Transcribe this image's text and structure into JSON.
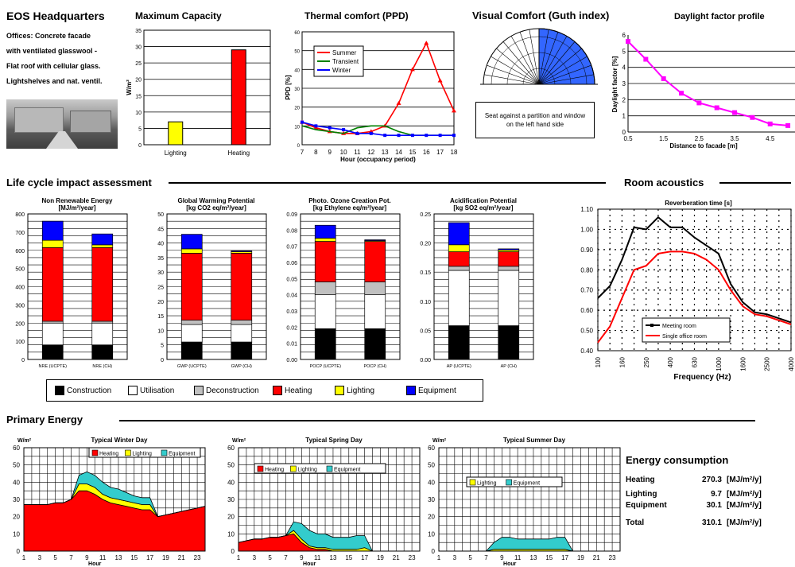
{
  "header": {
    "title": "EOS Headquarters",
    "description": [
      "Offices: Concrete facade",
      "with ventilated glasswool -",
      "Flat roof with cellular glass.",
      "Lightshelves and nat. ventil."
    ]
  },
  "sections": {
    "lca": "Life cycle impact assessment",
    "acoustics": "Room acoustics",
    "primary": "Primary Energy",
    "energy": "Energy consumption"
  },
  "guth": {
    "title": "Visual Comfort (Guth index)",
    "note": "Seat against a partition and window on the left hand side"
  },
  "lca_legend": [
    {
      "label": "Construction",
      "color": "#000000"
    },
    {
      "label": "Utilisation",
      "color": "#ffffff"
    },
    {
      "label": "Deconstruction",
      "color": "#c0c0c0"
    },
    {
      "label": "Heating",
      "color": "#ff0000"
    },
    {
      "label": "Lighting",
      "color": "#ffff00"
    },
    {
      "label": "Equipment",
      "color": "#0000ff"
    }
  ],
  "energy_consumption": {
    "unit": "[MJ/m²/y]",
    "rows": [
      {
        "label": "Heating",
        "value": "270.3"
      },
      {
        "label": "Lighting",
        "value": "9.7"
      },
      {
        "label": "Equipment",
        "value": "30.1"
      },
      {
        "label": "Total",
        "value": "310.1"
      }
    ]
  },
  "chart_data": [
    {
      "type": "bar",
      "title": "Maximum Capacity",
      "ylabel": "W/m²",
      "categories": [
        "Lighting",
        "Heating"
      ],
      "values": [
        7,
        29
      ],
      "colors": [
        "#ffff00",
        "#ff0000"
      ],
      "ylim": [
        0,
        35
      ],
      "yticks": [
        "0",
        "5",
        "10",
        "15",
        "20",
        "25",
        "30",
        "35"
      ]
    },
    {
      "type": "line",
      "title": "Thermal comfort (PPD)",
      "ylabel": "PPD [%]",
      "xlabel": "Hour (occupancy period)",
      "x": [
        7,
        8,
        9,
        10,
        11,
        12,
        13,
        14,
        15,
        16,
        17,
        18
      ],
      "ylim": [
        0,
        60
      ],
      "yticks": [
        "0",
        "10",
        "20",
        "30",
        "40",
        "50",
        "60"
      ],
      "series": [
        {
          "name": "Summer",
          "color": "#ff0000",
          "values": [
            12,
            9,
            7,
            6,
            6,
            7,
            10,
            22,
            40,
            54,
            34,
            18
          ]
        },
        {
          "name": "Transient",
          "color": "#008000",
          "values": [
            10,
            8,
            7,
            6,
            9,
            10,
            10,
            7,
            5,
            5,
            5,
            5
          ]
        },
        {
          "name": "Winter",
          "color": "#0000ff",
          "values": [
            12,
            10,
            9,
            8,
            6,
            6,
            5,
            5,
            5,
            5,
            5,
            5
          ]
        }
      ]
    },
    {
      "type": "line",
      "title": "Daylight factor profile",
      "ylabel": "Daylight factor [%]",
      "xlabel": "Distance to facade [m]",
      "x": [
        0.5,
        1,
        1.5,
        2,
        2.5,
        3,
        3.5,
        4,
        4.5,
        5
      ],
      "ylim": [
        0,
        6
      ],
      "xticks": [
        "0.5",
        "1.5",
        "2.5",
        "3.5",
        "4.5"
      ],
      "yticks": [
        "0",
        "1",
        "2",
        "3",
        "4",
        "5",
        "6"
      ],
      "series": [
        {
          "name": "",
          "color": "#ff00ff",
          "values": [
            5.6,
            4.5,
            3.3,
            2.4,
            1.8,
            1.5,
            1.2,
            0.9,
            0.5,
            0.4
          ]
        }
      ]
    },
    {
      "type": "bar",
      "title": "Non Renewable Energy",
      "subtitle": "[MJ/m²/year]",
      "stacked": true,
      "categories": [
        "NRE (UCPTE)",
        "NRE (CH)"
      ],
      "ylim": [
        0,
        800
      ],
      "yticks": [
        "0",
        "100",
        "200",
        "300",
        "400",
        "500",
        "600",
        "700",
        "800"
      ],
      "series": [
        {
          "name": "Construction",
          "values": [
            80,
            80
          ]
        },
        {
          "name": "Utilisation",
          "values": [
            120,
            120
          ]
        },
        {
          "name": "Deconstruction",
          "values": [
            10,
            10
          ]
        },
        {
          "name": "Heating",
          "values": [
            405,
            405
          ]
        },
        {
          "name": "Lighting",
          "values": [
            40,
            15
          ]
        },
        {
          "name": "Equipment",
          "values": [
            105,
            60
          ]
        }
      ]
    },
    {
      "type": "bar",
      "title": "Global Warming Potential",
      "subtitle": "[kg CO2 eq/m²/year]",
      "stacked": true,
      "categories": [
        "GWP (UCPTE)",
        "GWP (CH)"
      ],
      "ylim": [
        0,
        50
      ],
      "yticks": [
        "0",
        "5",
        "10",
        "15",
        "20",
        "25",
        "30",
        "35",
        "40",
        "45",
        "50"
      ],
      "series": [
        {
          "name": "Construction",
          "values": [
            6,
            6
          ]
        },
        {
          "name": "Utilisation",
          "values": [
            6,
            6
          ]
        },
        {
          "name": "Deconstruction",
          "values": [
            1.5,
            1.5
          ]
        },
        {
          "name": "Heating",
          "values": [
            23,
            23
          ]
        },
        {
          "name": "Lighting",
          "values": [
            1.5,
            0.5
          ]
        },
        {
          "name": "Equipment",
          "values": [
            5,
            0.3
          ]
        }
      ]
    },
    {
      "type": "bar",
      "title": "Photo. Ozone Creation Pot.",
      "subtitle": "[kg Ethylene eq/m²/year]",
      "stacked": true,
      "categories": [
        "POCP (UCPTE)",
        "POCP (CH)"
      ],
      "ylim": [
        0,
        0.09
      ],
      "yticks": [
        "0.00",
        "0.01",
        "0.02",
        "0.03",
        "0.04",
        "0.05",
        "0.06",
        "0.07",
        "0.08",
        "0.09"
      ],
      "series": [
        {
          "name": "Construction",
          "values": [
            0.019,
            0.019
          ]
        },
        {
          "name": "Utilisation",
          "values": [
            0.021,
            0.021
          ]
        },
        {
          "name": "Deconstruction",
          "values": [
            0.008,
            0.008
          ]
        },
        {
          "name": "Heating",
          "values": [
            0.025,
            0.025
          ]
        },
        {
          "name": "Lighting",
          "values": [
            0.002,
            0.0005
          ]
        },
        {
          "name": "Equipment",
          "values": [
            0.008,
            0.0005
          ]
        }
      ]
    },
    {
      "type": "bar",
      "title": "Acidification Potential",
      "subtitle": "[kg SO2 eq/m²/year]",
      "stacked": true,
      "categories": [
        "AP (UCPTE)",
        "AP (CH)"
      ],
      "ylim": [
        0,
        0.25
      ],
      "yticks": [
        "0.00",
        "0.05",
        "0.10",
        "0.15",
        "0.20",
        "0.25"
      ],
      "series": [
        {
          "name": "Construction",
          "values": [
            0.058,
            0.058
          ]
        },
        {
          "name": "Utilisation",
          "values": [
            0.095,
            0.095
          ]
        },
        {
          "name": "Deconstruction",
          "values": [
            0.007,
            0.007
          ]
        },
        {
          "name": "Heating",
          "values": [
            0.025,
            0.025
          ]
        },
        {
          "name": "Lighting",
          "values": [
            0.012,
            0.003
          ]
        },
        {
          "name": "Equipment",
          "values": [
            0.038,
            0.002
          ]
        }
      ]
    },
    {
      "type": "line",
      "title": "Reverberation time [s]",
      "xlabel": "Frequency (Hz)",
      "x": [
        "100",
        "125",
        "160",
        "200",
        "250",
        "315",
        "400",
        "500",
        "630",
        "800",
        "1000",
        "1250",
        "1600",
        "2000",
        "2500",
        "3150",
        "4000"
      ],
      "xticks": [
        "100",
        "160",
        "250",
        "400",
        "630",
        "1000",
        "1600",
        "2500",
        "4000"
      ],
      "ylim": [
        0.4,
        1.1
      ],
      "yticks": [
        "0.40",
        "0.50",
        "0.60",
        "0.70",
        "0.80",
        "0.90",
        "1.00",
        "1.10"
      ],
      "series": [
        {
          "name": "Meeting room",
          "color": "#000000",
          "values": [
            0.66,
            0.72,
            0.85,
            1.01,
            1.0,
            1.06,
            1.01,
            1.01,
            0.96,
            0.92,
            0.88,
            0.73,
            0.64,
            0.59,
            0.58,
            0.56,
            0.54
          ]
        },
        {
          "name": "Single office room",
          "color": "#ff0000",
          "values": [
            0.44,
            0.52,
            0.66,
            0.8,
            0.82,
            0.88,
            0.89,
            0.89,
            0.88,
            0.85,
            0.8,
            0.7,
            0.62,
            0.58,
            0.57,
            0.55,
            0.53
          ]
        }
      ]
    },
    {
      "type": "area",
      "title": "Typical Winter Day",
      "ylabel": "W/m²",
      "xlabel": "Hour",
      "x": [
        1,
        2,
        3,
        4,
        5,
        6,
        7,
        8,
        9,
        10,
        11,
        12,
        13,
        14,
        15,
        16,
        17,
        18,
        19,
        20,
        21,
        22,
        23,
        24
      ],
      "ylim": [
        0,
        60
      ],
      "xticks": [
        "1",
        "3",
        "5",
        "7",
        "9",
        "11",
        "13",
        "15",
        "17",
        "19",
        "21",
        "23"
      ],
      "yticks": [
        "0",
        "10",
        "20",
        "30",
        "40",
        "50",
        "60"
      ],
      "series": [
        {
          "name": "Heating",
          "color": "#ff0000",
          "values": [
            27,
            27,
            27,
            27,
            28,
            28,
            30,
            35,
            35,
            33,
            30,
            28,
            27,
            26,
            25,
            24,
            24,
            20,
            21,
            22,
            23,
            24,
            25,
            26
          ]
        },
        {
          "name": "Lighting",
          "color": "#ffff00",
          "values": [
            0,
            0,
            0,
            0,
            0,
            0,
            0,
            4,
            4,
            4,
            3,
            3,
            3,
            3,
            3,
            3,
            3,
            0,
            0,
            0,
            0,
            0,
            0,
            0
          ]
        },
        {
          "name": "Equipment",
          "color": "#33cccc",
          "values": [
            0,
            0,
            0,
            0,
            0,
            0,
            0,
            5,
            7,
            7,
            7,
            6,
            6,
            5,
            4,
            4,
            4,
            0,
            0,
            0,
            0,
            0,
            0,
            0
          ]
        }
      ]
    },
    {
      "type": "area",
      "title": "Typical Spring Day",
      "ylabel": "W/m²",
      "xlabel": "Hour",
      "x": [
        1,
        2,
        3,
        4,
        5,
        6,
        7,
        8,
        9,
        10,
        11,
        12,
        13,
        14,
        15,
        16,
        17,
        18,
        19,
        20,
        21,
        22,
        23,
        24
      ],
      "ylim": [
        0,
        60
      ],
      "xticks": [
        "1",
        "3",
        "5",
        "7",
        "9",
        "11",
        "13",
        "15",
        "17",
        "19",
        "21",
        "23"
      ],
      "yticks": [
        "0",
        "10",
        "20",
        "30",
        "40",
        "50",
        "60"
      ],
      "series": [
        {
          "name": "Heating",
          "color": "#ff0000",
          "values": [
            5,
            6,
            7,
            7,
            8,
            8,
            9,
            10,
            5,
            2,
            1,
            1,
            0,
            0,
            0,
            0,
            0,
            0,
            0,
            0,
            0,
            0,
            0,
            0
          ]
        },
        {
          "name": "Lighting",
          "color": "#ffff00",
          "values": [
            0,
            0,
            0,
            0,
            0,
            0,
            0,
            2,
            2,
            1,
            1,
            1,
            1,
            1,
            1,
            1,
            2,
            0,
            0,
            0,
            0,
            0,
            0,
            0
          ]
        },
        {
          "name": "Equipment",
          "color": "#33cccc",
          "values": [
            0,
            0,
            0,
            0,
            0,
            0,
            0,
            5,
            9,
            9,
            8,
            8,
            7,
            7,
            7,
            8,
            7,
            0,
            0,
            0,
            0,
            0,
            0,
            0
          ]
        }
      ]
    },
    {
      "type": "area",
      "title": "Typical Summer Day",
      "ylabel": "W/m²",
      "xlabel": "Hour",
      "x": [
        1,
        2,
        3,
        4,
        5,
        6,
        7,
        8,
        9,
        10,
        11,
        12,
        13,
        14,
        15,
        16,
        17,
        18,
        19,
        20,
        21,
        22,
        23,
        24
      ],
      "ylim": [
        0,
        60
      ],
      "xticks": [
        "1",
        "3",
        "5",
        "7",
        "9",
        "11",
        "13",
        "15",
        "17",
        "19",
        "21",
        "23"
      ],
      "yticks": [
        "0",
        "10",
        "20",
        "30",
        "40",
        "50",
        "60"
      ],
      "series": [
        {
          "name": "Lighting",
          "color": "#ffff00",
          "values": [
            0,
            0,
            0,
            0,
            0,
            0,
            0,
            1,
            1,
            1,
            1,
            1,
            1,
            1,
            1,
            1,
            1,
            0,
            0,
            0,
            0,
            0,
            0,
            0
          ]
        },
        {
          "name": "Equipment",
          "color": "#33cccc",
          "values": [
            0,
            0,
            0,
            0,
            0,
            0,
            0,
            4,
            7,
            7,
            6,
            6,
            6,
            6,
            6,
            7,
            7,
            0,
            0,
            0,
            0,
            0,
            0,
            0
          ]
        }
      ]
    }
  ]
}
